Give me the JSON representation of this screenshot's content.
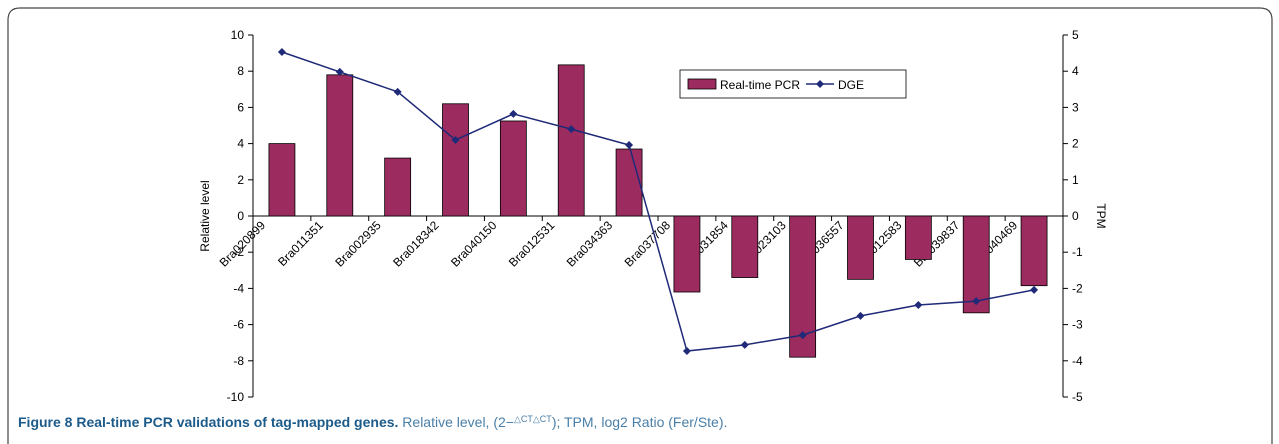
{
  "chart_data": {
    "type": "bar",
    "categories": [
      "Bra020899",
      "Bra011351",
      "Bra002935",
      "Bra018342",
      "Bra040150",
      "Bra012531",
      "Bra034363",
      "Bra037708",
      "Bra031854",
      "Bra023103",
      "Bra036557",
      "Bra012583",
      "Bra039837",
      "Bra040469"
    ],
    "series": [
      {
        "name": "Real-time PCR",
        "type": "bar",
        "color": "#9c2b5f",
        "values": [
          4.0,
          7.8,
          3.2,
          6.2,
          5.25,
          8.35,
          3.7,
          -4.2,
          -3.4,
          -7.8,
          -3.5,
          -2.4,
          -5.35,
          -3.85
        ]
      },
      {
        "name": "DGE",
        "type": "line",
        "axis": "y2",
        "color": "#1f2a78",
        "values": [
          4.53,
          3.98,
          3.43,
          2.1,
          2.82,
          2.4,
          1.96,
          -3.73,
          -3.56,
          -3.29,
          -2.76,
          -2.46,
          -2.35,
          -2.04
        ]
      }
    ],
    "y_label": "Relative level",
    "y2_label": "TPM",
    "ylim": [
      -10,
      10
    ],
    "yticks": [
      -10,
      -8,
      -6,
      -4,
      -2,
      0,
      2,
      4,
      6,
      8,
      10
    ],
    "y2lim": [
      -5,
      5
    ],
    "y2ticks": [
      -5,
      -4,
      -3,
      -2,
      -1,
      0,
      1,
      2,
      3,
      4,
      5
    ],
    "legend": "top"
  },
  "caption": {
    "title": "Figure 8 Real-time PCR validations of tag-mapped genes.",
    "text_before": " Relative level, (2−",
    "superscript": "△CT△CT",
    "text_after": "); TPM, log2 Ratio (Fer/Ste)."
  }
}
